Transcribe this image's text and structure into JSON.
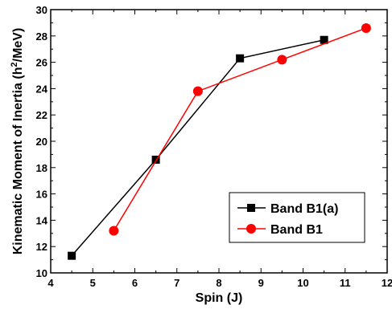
{
  "chart_data": {
    "type": "line",
    "xlabel": "Spin (J)",
    "ylabel_main": "Kinematic Moment of Inertia (h",
    "ylabel_sup": "2",
    "ylabel_end": "/MeV)",
    "xlim": [
      4,
      12
    ],
    "ylim": [
      10,
      30
    ],
    "x_ticks": [
      "4",
      "5",
      "6",
      "7",
      "8",
      "9",
      "10",
      "11",
      "12"
    ],
    "y_ticks": [
      "10",
      "12",
      "14",
      "16",
      "18",
      "20",
      "22",
      "24",
      "26",
      "28",
      "30"
    ],
    "grid": false,
    "legend_position": "bottom-right",
    "series": [
      {
        "name": "Band B1(a)",
        "color": "#000000",
        "marker": "square",
        "x": [
          4.5,
          6.5,
          8.5,
          10.5
        ],
        "y": [
          11.3,
          18.6,
          26.3,
          27.7
        ]
      },
      {
        "name": "Band B1",
        "color": "#ff0000",
        "marker": "circle",
        "x": [
          5.5,
          7.5,
          9.5,
          11.5
        ],
        "y": [
          13.2,
          23.8,
          26.2,
          28.6
        ]
      }
    ]
  }
}
